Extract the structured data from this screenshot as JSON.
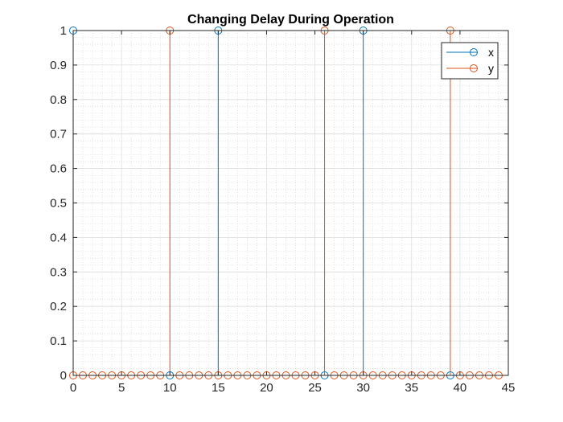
{
  "chart_data": {
    "type": "stem",
    "title": "Changing Delay During Operation",
    "xlabel": "",
    "ylabel": "",
    "xlim": [
      0,
      45
    ],
    "ylim": [
      0,
      1
    ],
    "xticks": [
      0,
      5,
      10,
      15,
      20,
      25,
      30,
      35,
      40,
      45
    ],
    "yticks": [
      0,
      0.1,
      0.2,
      0.3,
      0.4,
      0.5,
      0.6,
      0.7,
      0.8,
      0.9,
      1
    ],
    "grid": true,
    "minor_grid": true,
    "legend_position": "top-right",
    "series": [
      {
        "name": "x",
        "color": "#0072BD",
        "x": [
          0,
          10,
          15,
          26,
          30,
          39
        ],
        "values": [
          1,
          0,
          1,
          0,
          1,
          0
        ]
      },
      {
        "name": "y",
        "color": "#D95319",
        "x": [
          0,
          1,
          2,
          3,
          4,
          5,
          6,
          7,
          8,
          9,
          10,
          11,
          12,
          13,
          14,
          15,
          16,
          17,
          18,
          19,
          20,
          21,
          22,
          23,
          24,
          25,
          26,
          27,
          28,
          29,
          30,
          31,
          32,
          33,
          34,
          35,
          36,
          37,
          38,
          39,
          40,
          41,
          42,
          43,
          44
        ],
        "values": [
          0,
          0,
          0,
          0,
          0,
          0,
          0,
          0,
          0,
          0,
          1,
          0,
          0,
          0,
          0,
          0,
          0,
          0,
          0,
          0,
          0,
          0,
          0,
          0,
          0,
          0,
          1,
          0,
          0,
          0,
          0,
          0,
          0,
          0,
          0,
          0,
          0,
          0,
          0,
          1,
          0,
          0,
          0,
          0,
          0
        ]
      }
    ]
  }
}
